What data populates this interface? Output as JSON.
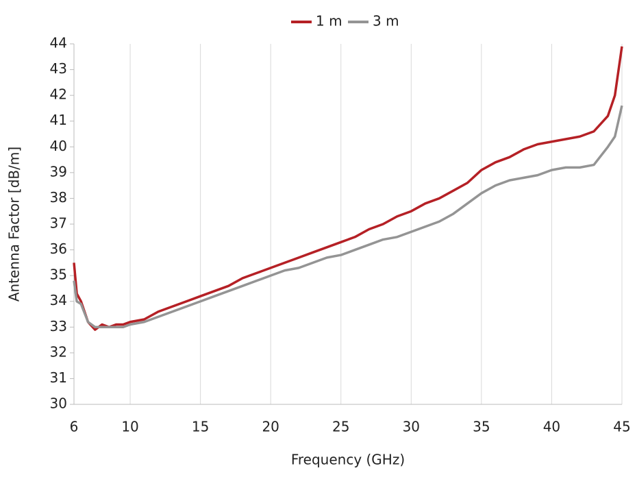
{
  "chart_data": {
    "type": "line",
    "x_label": "Frequency (GHz)",
    "y_label": "Antenna Factor [dB/m]",
    "x": [
      6,
      6.2,
      6.5,
      7,
      7.5,
      8,
      8.5,
      9,
      9.5,
      10,
      11,
      12,
      13,
      14,
      15,
      16,
      17,
      18,
      19,
      20,
      21,
      22,
      23,
      24,
      25,
      26,
      27,
      28,
      29,
      30,
      31,
      32,
      33,
      34,
      35,
      36,
      37,
      38,
      39,
      40,
      41,
      42,
      43,
      44,
      44.5,
      45
    ],
    "series": [
      {
        "name": "1 m",
        "color": "#b52025",
        "values": [
          35.5,
          34.3,
          34.0,
          33.2,
          32.9,
          33.1,
          33.0,
          33.1,
          33.1,
          33.2,
          33.3,
          33.6,
          33.8,
          34.0,
          34.2,
          34.4,
          34.6,
          34.9,
          35.1,
          35.3,
          35.5,
          35.7,
          35.9,
          36.1,
          36.3,
          36.5,
          36.8,
          37.0,
          37.3,
          37.5,
          37.8,
          38.0,
          38.3,
          38.6,
          39.1,
          39.4,
          39.6,
          39.9,
          40.1,
          40.2,
          40.3,
          40.4,
          40.6,
          41.2,
          42.0,
          43.9
        ]
      },
      {
        "name": "3 m",
        "color": "#949494",
        "values": [
          34.8,
          34.0,
          33.9,
          33.2,
          33.0,
          33.0,
          33.0,
          33.0,
          33.0,
          33.1,
          33.2,
          33.4,
          33.6,
          33.8,
          34.0,
          34.2,
          34.4,
          34.6,
          34.8,
          35.0,
          35.2,
          35.3,
          35.5,
          35.7,
          35.8,
          36.0,
          36.2,
          36.4,
          36.5,
          36.7,
          36.9,
          37.1,
          37.4,
          37.8,
          38.2,
          38.5,
          38.7,
          38.8,
          38.9,
          39.1,
          39.2,
          39.2,
          39.3,
          40.0,
          40.4,
          41.6
        ]
      }
    ],
    "xlim": [
      6,
      45
    ],
    "xticks": [
      6,
      10,
      15,
      20,
      25,
      30,
      35,
      40,
      45
    ],
    "ylim": [
      30,
      44
    ],
    "yticks": [
      30,
      31,
      32,
      33,
      34,
      35,
      36,
      37,
      38,
      39,
      40,
      41,
      42,
      43,
      44
    ],
    "grid": "x",
    "legend": "top"
  }
}
